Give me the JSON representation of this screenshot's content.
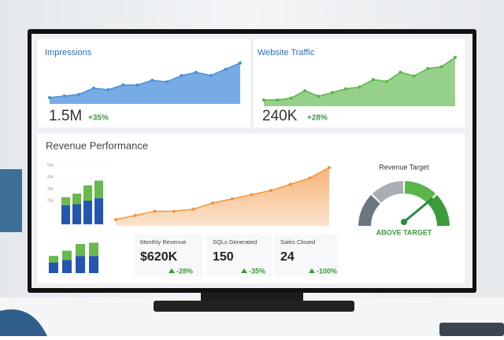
{
  "impressions": {
    "title": "Impressions",
    "value": "1.5M",
    "change": "+35%",
    "chart_data": {
      "type": "line",
      "values": [
        10,
        11,
        12,
        16,
        15,
        18,
        18,
        21,
        20,
        24,
        26,
        24,
        28,
        32
      ],
      "color": "#4a8fdc"
    }
  },
  "traffic": {
    "title": "Website Traffic",
    "value": "240K",
    "change": "+28%",
    "chart_data": {
      "type": "line",
      "values": [
        4,
        4,
        5,
        9,
        6,
        8,
        10,
        11,
        15,
        14,
        19,
        17,
        21,
        22,
        27
      ],
      "color": "#5ab54a"
    }
  },
  "revenue": {
    "title": "Revenue Performance",
    "bars": {
      "type": "bar",
      "ylim": [
        0,
        50
      ],
      "yticks": [
        {
          "value": 50,
          "label": "50k"
        },
        {
          "value": 40,
          "label": "40k"
        },
        {
          "value": 30,
          "label": "30k"
        },
        {
          "value": 20,
          "label": "20k"
        }
      ],
      "series": [
        {
          "color": "#2456b0",
          "values": [
            16,
            17,
            20,
            22
          ]
        },
        {
          "color": "#6ab84e",
          "values": [
            7,
            9,
            13,
            15
          ]
        }
      ]
    },
    "line": {
      "type": "line",
      "values": [
        10,
        12,
        14,
        14,
        15,
        18,
        20,
        22,
        24,
        27,
        30,
        35
      ],
      "color": "#f0953a"
    },
    "small_bars": {
      "type": "bar",
      "ylim": [
        0,
        25
      ],
      "series": [
        {
          "color": "#2456b0",
          "values": [
            8,
            10,
            13,
            13
          ]
        },
        {
          "color": "#6ab84e",
          "values": [
            5,
            7,
            9,
            10
          ]
        }
      ]
    },
    "kpis": [
      {
        "label": "Monthly Revenue",
        "value": "$620K",
        "change": "-28%"
      },
      {
        "label": "SQLs Generated",
        "value": "150",
        "change": "-35%"
      },
      {
        "label": "Sales Closed",
        "value": "24",
        "change": "-100%"
      }
    ]
  },
  "gauge": {
    "title": "Revenue Target",
    "status": "ABOVE TARGET",
    "chart_data": {
      "type": "gauge",
      "value": 75,
      "lim": [
        0,
        100
      ]
    }
  }
}
